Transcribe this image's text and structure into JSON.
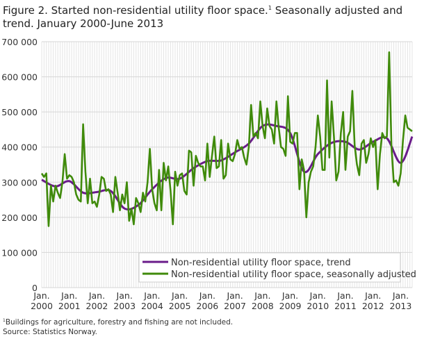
{
  "title_part1": "Figure 2. Started non-residential utility floor space.",
  "title_sup": "1",
  "title_part2": " Seasonally adjusted and trend. January 2000-June 2013",
  "footnote_sup": "1",
  "footnote": "Buildings for agriculture, forestry and fishing are not included.",
  "source": "Source: Statistics Norway.",
  "chart_data": {
    "type": "line",
    "title": "Started non-residential utility floor space. Seasonally adjusted and trend. January 2000-June 2013",
    "xlabel": "",
    "ylabel": "",
    "ylim": [
      0,
      700000
    ],
    "y_ticks": [
      0,
      100000,
      200000,
      300000,
      400000,
      500000,
      600000,
      700000
    ],
    "y_tick_labels": [
      "0",
      "100 000",
      "200 000",
      "300 000",
      "400 000",
      "500 000",
      "600 000",
      "700 000"
    ],
    "x_tick_labels": [
      [
        "Jan.",
        "2000"
      ],
      [
        "Jan.",
        "2001"
      ],
      [
        "Jan.",
        "2002"
      ],
      [
        "Jan.",
        "2003"
      ],
      [
        "Jan.",
        "2004"
      ],
      [
        "Jan.",
        "2005"
      ],
      [
        "Jan.",
        "2006"
      ],
      [
        "Jan.",
        "2007"
      ],
      [
        "Jan.",
        "2008"
      ],
      [
        "Jan.",
        "2009"
      ],
      [
        "Jan.",
        "2010"
      ],
      [
        "Jan.",
        "2011"
      ],
      [
        "Jan.",
        "2012"
      ],
      [
        "Jan.",
        "2013"
      ]
    ],
    "grid": true,
    "legend_position": "bottom-right",
    "start": "2000-01",
    "months": 162,
    "series": [
      {
        "name": "Non-residential utility floor space, trend",
        "color": "#6a1b8a",
        "keys_month_index": [
          0,
          6,
          12,
          18,
          24,
          30,
          36,
          42,
          48,
          54,
          60,
          66,
          72,
          78,
          84,
          90,
          96,
          102,
          108,
          114,
          120,
          126,
          132,
          138,
          144,
          150,
          156,
          161
        ],
        "values": [
          307000,
          288000,
          303000,
          270000,
          272000,
          275000,
          225000,
          235000,
          280000,
          312000,
          310000,
          340000,
          360000,
          362000,
          385000,
          410000,
          460000,
          460000,
          440000,
          330000,
          380000,
          412000,
          415000,
          393000,
          415000,
          425000,
          355000,
          430000
        ]
      },
      {
        "name": "Non-residential utility floor space, seasonally adjusted",
        "color": "#3f8a0a",
        "values": [
          325000,
          315000,
          325000,
          175000,
          290000,
          245000,
          290000,
          270000,
          255000,
          300000,
          380000,
          310000,
          320000,
          315000,
          300000,
          265000,
          250000,
          245000,
          465000,
          330000,
          240000,
          310000,
          240000,
          245000,
          230000,
          265000,
          315000,
          310000,
          275000,
          280000,
          265000,
          215000,
          315000,
          270000,
          220000,
          265000,
          240000,
          300000,
          190000,
          225000,
          180000,
          255000,
          240000,
          215000,
          270000,
          245000,
          300000,
          395000,
          280000,
          240000,
          220000,
          335000,
          220000,
          355000,
          305000,
          345000,
          275000,
          180000,
          330000,
          290000,
          320000,
          325000,
          275000,
          265000,
          390000,
          385000,
          290000,
          375000,
          355000,
          345000,
          345000,
          305000,
          410000,
          315000,
          375000,
          430000,
          340000,
          345000,
          420000,
          310000,
          320000,
          410000,
          365000,
          360000,
          380000,
          420000,
          395000,
          400000,
          370000,
          350000,
          400000,
          520000,
          430000,
          440000,
          425000,
          530000,
          460000,
          425000,
          510000,
          460000,
          450000,
          410000,
          530000,
          455000,
          400000,
          395000,
          375000,
          545000,
          415000,
          410000,
          440000,
          440000,
          280000,
          365000,
          335000,
          200000,
          300000,
          330000,
          345000,
          400000,
          490000,
          430000,
          335000,
          335000,
          590000,
          370000,
          530000,
          430000,
          305000,
          330000,
          440000,
          500000,
          335000,
          430000,
          445000,
          560000,
          405000,
          350000,
          320000,
          410000,
          420000,
          355000,
          380000,
          425000,
          400000,
          420000,
          280000,
          380000,
          440000,
          425000,
          430000,
          670000,
          400000,
          300000,
          305000,
          290000,
          325000,
          420000,
          490000,
          455000,
          450000,
          445000
        ]
      }
    ]
  }
}
